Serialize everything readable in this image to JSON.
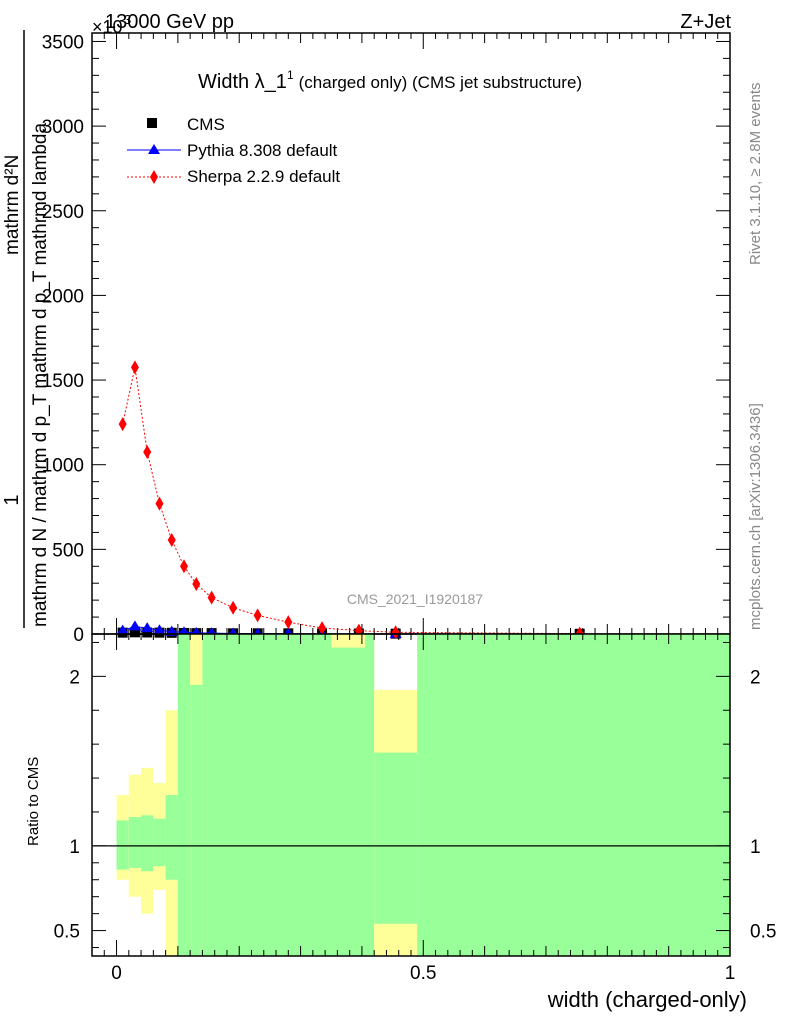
{
  "header": {
    "energy_label": "13000 GeV pp",
    "process_label": "Z+Jet",
    "exponent_label": "×10",
    "exponent_power": "3"
  },
  "side_labels": {
    "rivet": "Rivet 3.1.10, ≥ 2.8M events",
    "mcplots": "mcplots.cern.ch [arXiv:1306.3436]"
  },
  "watermark": "CMS_2021_I1920187",
  "chart_data": [
    {
      "type": "scatter",
      "title": "Width λ_1",
      "title_sup": "1",
      "subtitle": "(charged only) (CMS jet substructure)",
      "ylabel_numerator": "1",
      "ylabel_denominator": "mathrm d N / mathrm d p_T mathrm d p_T mathrmd lambda",
      "ylabel_top": "mathrm d²N",
      "ylim": [
        0,
        3550
      ],
      "xlim": [
        -0.04,
        1.0
      ],
      "yticks": [
        0,
        500,
        1000,
        1500,
        2000,
        2500,
        3000,
        3500
      ],
      "ytick_labels": [
        "0",
        "500",
        "1000",
        "1500",
        "2000",
        "2500",
        "3000",
        "3500"
      ],
      "legend_position": "top-left",
      "series": [
        {
          "name": "CMS",
          "color": "#000000",
          "marker": "square",
          "x": [
            0.01,
            0.03,
            0.05,
            0.07,
            0.09,
            0.11,
            0.13,
            0.155,
            0.19,
            0.23,
            0.28,
            0.335,
            0.395,
            0.455,
            0.755
          ],
          "y": [
            8,
            10,
            9,
            8,
            7,
            6,
            5,
            5,
            4,
            4,
            4,
            3,
            3,
            2,
            1
          ]
        },
        {
          "name": "Pythia 8.308 default",
          "color": "#0000ff",
          "marker": "triangle",
          "x": [
            0.01,
            0.03,
            0.05,
            0.07,
            0.09,
            0.11,
            0.13,
            0.155,
            0.19,
            0.23,
            0.28,
            0.335,
            0.395,
            0.455,
            0.755
          ],
          "y": [
            20,
            45,
            35,
            22,
            14,
            10,
            7,
            5,
            3,
            2,
            2,
            1,
            1,
            0.5,
            0.1
          ]
        },
        {
          "name": "Sherpa 2.2.9 default",
          "color": "#ff0000",
          "marker": "diamond",
          "x": [
            0.01,
            0.03,
            0.05,
            0.07,
            0.09,
            0.11,
            0.13,
            0.155,
            0.19,
            0.23,
            0.28,
            0.335,
            0.395,
            0.455,
            0.755
          ],
          "y": [
            1240,
            1575,
            1075,
            770,
            555,
            400,
            295,
            215,
            155,
            110,
            70,
            35,
            20,
            10,
            2
          ]
        }
      ]
    },
    {
      "type": "area",
      "ylabel": "Ratio to CMS",
      "xlabel": "width (charged-only)",
      "ylim": [
        0.35,
        2.25
      ],
      "xlim": [
        -0.04,
        1.0
      ],
      "reference_line": 1,
      "yticks": [
        0.5,
        1,
        2
      ],
      "ytick_labels": [
        "0.5",
        "1",
        "2"
      ],
      "xticks": [
        0,
        0.5,
        1
      ],
      "xtick_labels": [
        "0",
        "0.5",
        "1"
      ],
      "bands": {
        "inner_color": "#99ff99",
        "outer_color": "#ffff99",
        "bins": [
          {
            "x0": 0.0,
            "x1": 0.02,
            "inner": [
              0.86,
              1.15
            ],
            "outer": [
              0.8,
              1.3
            ]
          },
          {
            "x0": 0.02,
            "x1": 0.04,
            "inner": [
              0.87,
              1.17
            ],
            "outer": [
              0.7,
              1.42
            ]
          },
          {
            "x0": 0.04,
            "x1": 0.06,
            "inner": [
              0.85,
              1.18
            ],
            "outer": [
              0.6,
              1.46
            ]
          },
          {
            "x0": 0.06,
            "x1": 0.08,
            "inner": [
              0.88,
              1.16
            ],
            "outer": [
              0.74,
              1.37
            ]
          },
          {
            "x0": 0.08,
            "x1": 0.1,
            "inner": [
              0.8,
              1.3
            ],
            "outer": [
              0.35,
              1.8
            ]
          },
          {
            "x0": 0.1,
            "x1": 0.12,
            "inner": [
              0.35,
              2.25
            ],
            "outer": [
              0.35,
              2.25
            ]
          },
          {
            "x0": 0.12,
            "x1": 0.14,
            "inner": [
              0.35,
              1.95
            ],
            "outer": [
              0.35,
              2.25
            ]
          },
          {
            "x0": 0.14,
            "x1": 0.42,
            "inner": [
              0.35,
              2.25
            ],
            "outer": [
              0.35,
              2.25
            ]
          },
          {
            "x0": 0.42,
            "x1": 0.49,
            "inner": [
              0.54,
              1.55
            ],
            "outer": [
              0.35,
              1.92
            ]
          },
          {
            "x0": 0.49,
            "x1": 1.0,
            "inner": [
              0.35,
              2.25
            ],
            "outer": [
              0.35,
              2.25
            ]
          }
        ],
        "extra_outer": [
          {
            "x0": 0.35,
            "x1": 0.405,
            "y0": 2.17,
            "y1": 2.25
          }
        ]
      }
    }
  ]
}
